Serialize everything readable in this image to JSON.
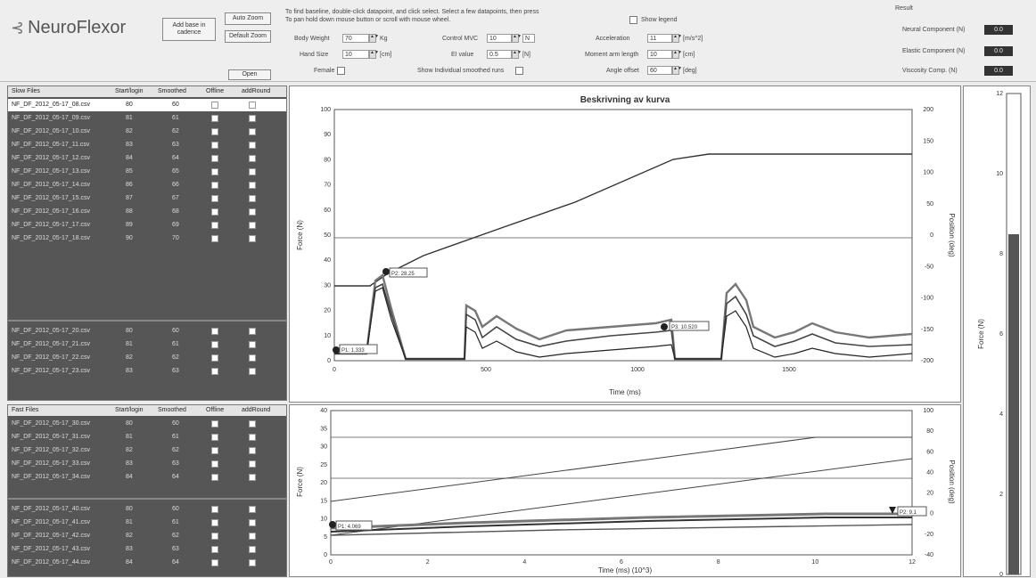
{
  "app": {
    "logo_text": "NeuroFlexor"
  },
  "toolbar": {
    "add_baseline_label": "Add base in cadence",
    "auto_zoom_label": "Auto Zoom",
    "default_zoom_label": "Default Zoom",
    "open_label": "Open",
    "instruction_line1": "To find baseline, double-click datapoint, and click select. Select a few datapoints, then press",
    "instruction_line2": "To pan hold down mouse button or scroll with mouse wheel.",
    "show_legend_label": "Show legend",
    "body_weight_label": "Body Weight",
    "body_weight_value": "70",
    "body_weight_unit": "Kg",
    "hand_size_label": "Hand Size",
    "hand_size_value": "10",
    "hand_size_unit": "[cm]",
    "female_label": "Female",
    "control_mvc_label": "Control MVC",
    "control_mvc_value": "10",
    "control_mvc_unit": "N",
    "ei_value_label": "EI value",
    "ei_value_value": "0.5",
    "ei_value_unit": "[N]",
    "show_smoothed_label": "Show Individual smoothed runs",
    "acceleration_label": "Acceleration",
    "acceleration_value": "11",
    "acceleration_unit": "[m/s^2]",
    "moment_arm_label": "Moment arm length",
    "moment_arm_value": "10",
    "moment_arm_unit": "[cm]",
    "angle_label": "Angle offset",
    "angle_value": "60",
    "angle_unit": "[deg]"
  },
  "results": {
    "title": "Result",
    "neural_label": "Neural Component (N)",
    "neural_value": "0.0",
    "elastic_label": "Elastic Component (N)",
    "elastic_value": "0.0",
    "viscous_label": "Viscosity Comp. (N)",
    "viscous_value": "0.0"
  },
  "upper_table": {
    "headers": [
      "Slow Files",
      "Start/login",
      "Smoothed",
      "Offline",
      "addRound"
    ],
    "rows": [
      {
        "name": "NF_DF_2012_05-17_08.csv",
        "start": "80",
        "smooth": "60",
        "selected": true
      },
      {
        "name": "NF_DF_2012_05-17_09.csv",
        "start": "81",
        "smooth": "61"
      },
      {
        "name": "NF_DF_2012_05-17_10.csv",
        "start": "82",
        "smooth": "62"
      },
      {
        "name": "NF_DF_2012_05-17_11.csv",
        "start": "83",
        "smooth": "63"
      },
      {
        "name": "NF_DF_2012_05-17_12.csv",
        "start": "84",
        "smooth": "64"
      },
      {
        "name": "NF_DF_2012_05-17_13.csv",
        "start": "85",
        "smooth": "65"
      },
      {
        "name": "NF_DF_2012_05-17_14.csv",
        "start": "86",
        "smooth": "66"
      },
      {
        "name": "NF_DF_2012_05-17_15.csv",
        "start": "87",
        "smooth": "67"
      },
      {
        "name": "NF_DF_2012_05-17_16.csv",
        "start": "88",
        "smooth": "68"
      },
      {
        "name": "NF_DF_2012_05-17_17.csv",
        "start": "89",
        "smooth": "69"
      },
      {
        "name": "NF_DF_2012_05-17_18.csv",
        "start": "90",
        "smooth": "70"
      }
    ],
    "rows2": [
      {
        "name": "NF_DF_2012_05-17_20.csv",
        "start": "80",
        "smooth": "60"
      },
      {
        "name": "NF_DF_2012_05-17_21.csv",
        "start": "81",
        "smooth": "61"
      },
      {
        "name": "NF_DF_2012_05-17_22.csv",
        "start": "82",
        "smooth": "62"
      },
      {
        "name": "NF_DF_2012_05-17_23.csv",
        "start": "83",
        "smooth": "63"
      }
    ]
  },
  "lower_table": {
    "headers": [
      "Fast Files",
      "Start/login",
      "Smoothed",
      "Offline",
      "addRound"
    ],
    "rows": [
      {
        "name": "NF_DF_2012_05-17_30.csv",
        "start": "80",
        "smooth": "60"
      },
      {
        "name": "NF_DF_2012_05-17_31.csv",
        "start": "81",
        "smooth": "61"
      },
      {
        "name": "NF_DF_2012_05-17_32.csv",
        "start": "82",
        "smooth": "62"
      },
      {
        "name": "NF_DF_2012_05-17_33.csv",
        "start": "83",
        "smooth": "63"
      },
      {
        "name": "NF_DF_2012_05-17_34.csv",
        "start": "84",
        "smooth": "64"
      }
    ],
    "rows2": [
      {
        "name": "NF_DF_2012_05-17_40.csv",
        "start": "80",
        "smooth": "60"
      },
      {
        "name": "NF_DF_2012_05-17_41.csv",
        "start": "81",
        "smooth": "61"
      },
      {
        "name": "NF_DF_2012_05-17_42.csv",
        "start": "82",
        "smooth": "62"
      },
      {
        "name": "NF_DF_2012_05-17_43.csv",
        "start": "83",
        "smooth": "63"
      },
      {
        "name": "NF_DF_2012_05-17_44.csv",
        "start": "84",
        "smooth": "64"
      }
    ]
  },
  "upper_chart": {
    "title": "Beskrivning av kurva",
    "xlabel": "Time (ms)",
    "ylabel_left": "Force (N)",
    "ylabel_right": "Position (deg)",
    "x_ticks": [
      "0",
      "500",
      "1000",
      "1500"
    ],
    "y_left_ticks": [
      "0",
      "10",
      "20",
      "30",
      "40",
      "50",
      "60",
      "70",
      "80",
      "90",
      "100"
    ],
    "y_right_ticks": [
      "-200",
      "-150",
      "-100",
      "-50",
      "0",
      "50",
      "100",
      "150",
      "200"
    ],
    "markers": [
      {
        "label": "P1: 1.333"
      },
      {
        "label": "P2: 28.25"
      },
      {
        "label": "P3: 10.520"
      }
    ]
  },
  "lower_chart": {
    "xlabel": "Time (ms) (10^3)",
    "ylabel_left": "Force (N)",
    "ylabel_right": "Position (deg)",
    "x_ticks": [
      "0",
      "2",
      "4",
      "6",
      "8",
      "10",
      "12"
    ],
    "y_left_ticks": [
      "0",
      "5",
      "10",
      "15",
      "20",
      "25",
      "30",
      "35",
      "40"
    ],
    "y_right_ticks": [
      "-40",
      "-20",
      "0",
      "20",
      "40",
      "60",
      "80",
      "100"
    ],
    "markers": [
      {
        "label": "P1: 4.069"
      },
      {
        "label": "P2: 9.1"
      }
    ]
  },
  "side_bar": {
    "ylabel": "Force (N)",
    "ticks": [
      "12",
      "10",
      "8",
      "6",
      "4",
      "2",
      "0"
    ]
  }
}
